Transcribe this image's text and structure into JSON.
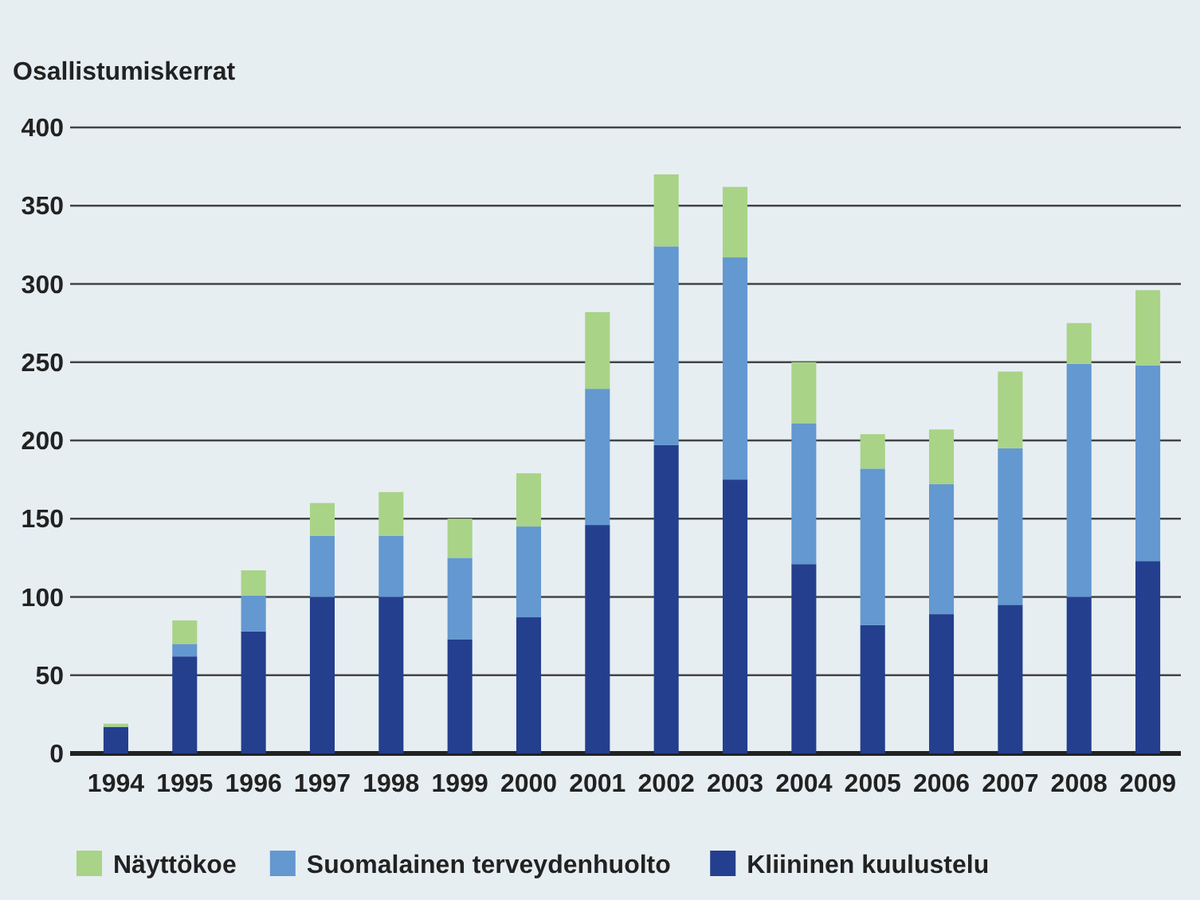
{
  "chart_data": {
    "type": "bar",
    "stacked": true,
    "ylabel": "Osallistumiskerrat",
    "categories": [
      "1994",
      "1995",
      "1996",
      "1997",
      "1998",
      "1999",
      "2000",
      "2001",
      "2002",
      "2003",
      "2004",
      "2005",
      "2006",
      "2007",
      "2008",
      "2009"
    ],
    "series": [
      {
        "name": "Kliininen kuulustelu",
        "color": "#243f8e",
        "values": [
          17,
          62,
          78,
          100,
          100,
          73,
          87,
          146,
          197,
          175,
          121,
          82,
          89,
          95,
          100,
          123
        ]
      },
      {
        "name": "Suomalainen terveydenhuolto",
        "color": "#6398d0",
        "values": [
          0,
          8,
          23,
          39,
          39,
          52,
          58,
          87,
          127,
          142,
          90,
          100,
          83,
          100,
          149,
          125
        ]
      },
      {
        "name": "Näyttökoe",
        "color": "#a9d387",
        "values": [
          2,
          15,
          16,
          21,
          28,
          25,
          34,
          49,
          46,
          45,
          39,
          22,
          35,
          49,
          26,
          48
        ]
      }
    ],
    "ylim": [
      0,
      400
    ],
    "yticks": [
      0,
      50,
      100,
      150,
      200,
      250,
      300,
      350,
      400
    ],
    "grid": "y",
    "legend": "bottom"
  }
}
